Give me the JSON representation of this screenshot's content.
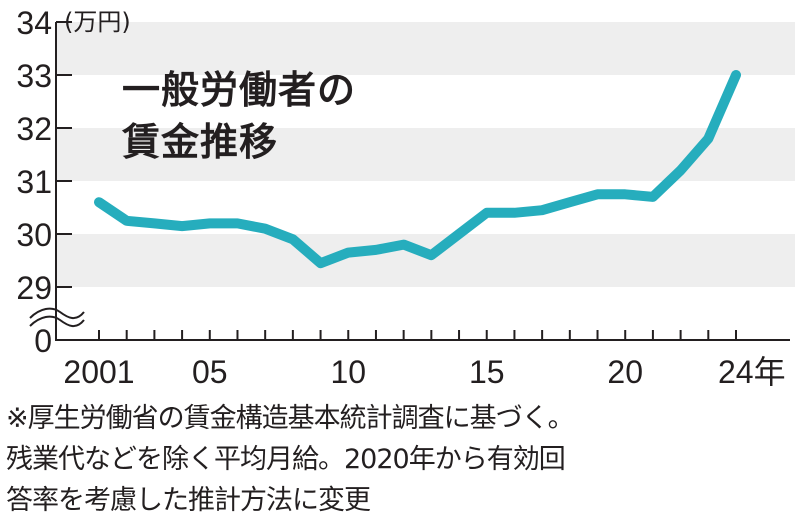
{
  "chart_data": {
    "type": "line",
    "title": "一般労働者の賃金推移",
    "title_lines": [
      "一般労働者の",
      "賃金推移"
    ],
    "ylabel": "(万円)",
    "xlabel": "年",
    "ylim": [
      29,
      34
    ],
    "y_axis_break": true,
    "y_ticks": [
      "34",
      "33",
      "32",
      "31",
      "30",
      "29",
      "0"
    ],
    "x_tick_labels": [
      "2001",
      "05",
      "10",
      "15",
      "20",
      "24年"
    ],
    "x_tick_label_years": [
      2001,
      2005,
      2010,
      2015,
      2020,
      2024
    ],
    "grid": "alternating horizontal bands",
    "legend": null,
    "x": [
      2001,
      2002,
      2003,
      2004,
      2005,
      2006,
      2007,
      2008,
      2009,
      2010,
      2011,
      2012,
      2013,
      2014,
      2015,
      2016,
      2017,
      2018,
      2019,
      2020,
      2021,
      2022,
      2023,
      2024
    ],
    "series": [
      {
        "name": "一般労働者の賃金",
        "color": "#26adbd",
        "values": [
          30.6,
          30.25,
          30.2,
          30.15,
          30.2,
          30.2,
          30.1,
          29.9,
          29.45,
          29.65,
          29.7,
          29.8,
          29.6,
          30.0,
          30.4,
          30.4,
          30.45,
          30.6,
          30.75,
          30.75,
          30.7,
          31.2,
          31.8,
          33.0
        ]
      }
    ]
  },
  "colors": {
    "line": "#26adbd",
    "band": "#eeeeee",
    "axis": "#231f20",
    "text": "#231f20"
  },
  "note": {
    "lines": [
      "※厚生労働省の賃金構造基本統計調査に基づく。",
      "残業代などを除く平均月給。2020年から有効回",
      "答率を考慮した推計方法に変更"
    ]
  }
}
